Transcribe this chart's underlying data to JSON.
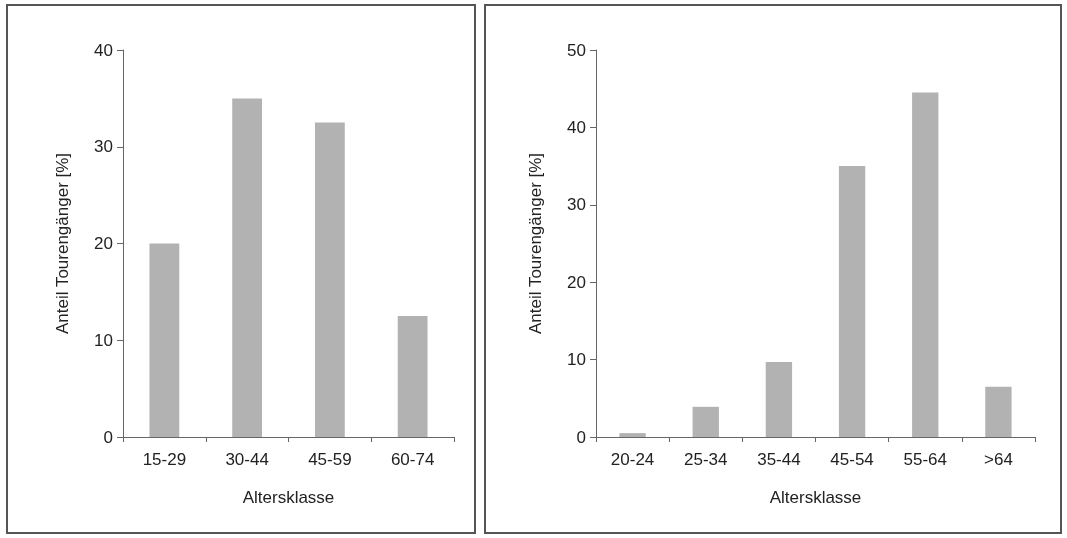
{
  "chart_data": [
    {
      "type": "bar",
      "xlabel": "Altersklasse",
      "ylabel": "Anteil Tourengänger [%]",
      "categories": [
        "15-29",
        "30-44",
        "45-59",
        "60-74"
      ],
      "color": "#b2b2b2",
      "values": [
        20,
        35,
        32.5,
        12.5
      ],
      "ylim": [
        0,
        40
      ],
      "yticks": [
        0,
        10,
        20,
        30,
        40
      ],
      "grid": false
    },
    {
      "type": "bar",
      "xlabel": "Altersklasse",
      "ylabel": "Anteil Tourengänger [%]",
      "categories": [
        "20-24",
        "25-34",
        "35-44",
        "45-54",
        "55-64",
        ">64"
      ],
      "color": "#b2b2b2",
      "values": [
        0.5,
        3.9,
        9.7,
        35,
        44.5,
        6.5
      ],
      "ylim": [
        0,
        50
      ],
      "yticks": [
        0,
        10,
        20,
        30,
        40,
        50
      ],
      "grid": false
    }
  ]
}
